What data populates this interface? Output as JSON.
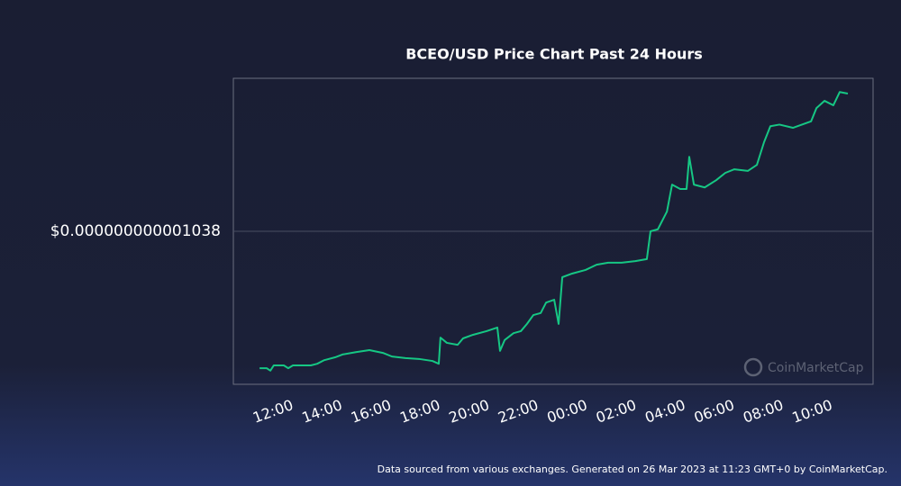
{
  "chart_data": {
    "type": "line",
    "title": "BCEO/USD Price Chart Past 24 Hours",
    "source": "Data sourced from various exchanges. Generated on 26 Mar 2023 at 11:23 GMT+0 by CoinMarketCap.",
    "watermark": "CoinMarketCap",
    "color": "#16c784",
    "grid": true,
    "x": [
      -0.62,
      -0.33,
      -0.18,
      -0.04,
      0.37,
      0.55,
      0.74,
      1.47,
      1.73,
      2.02,
      2.46,
      2.76,
      3.31,
      3.86,
      4.41,
      4.78,
      5.33,
      5.88,
      6.43,
      6.69,
      6.76,
      7.02,
      7.46,
      7.68,
      8.09,
      8.64,
      9.08,
      9.19,
      9.38,
      9.74,
      10.04,
      10.29,
      10.55,
      10.85,
      11.07,
      11.4,
      11.58,
      11.73,
      12.13,
      12.68,
      13.13,
      13.6,
      14.15,
      14.71,
      15.18,
      15.33,
      15.63,
      16.0,
      16.21,
      16.54,
      16.8,
      16.91,
      17.1,
      17.54,
      18.01,
      18.38,
      18.75,
      19.3,
      19.67,
      19.96,
      20.22,
      20.59,
      21.14,
      21.51,
      21.88,
      22.1,
      22.43,
      22.79,
      23.05,
      23.38
    ],
    "values": [
      1.004e-12,
      1.004e-12,
      1.0034e-12,
      1.0047e-12,
      1.0047e-12,
      1.004e-12,
      1.0047e-12,
      1.0047e-12,
      1.0051e-12,
      1.006e-12,
      1.0067e-12,
      1.0074e-12,
      1.008e-12,
      1.0085e-12,
      1.0078e-12,
      1.0069e-12,
      1.0065e-12,
      1.0063e-12,
      1.0058e-12,
      1.0051e-12,
      1.0116e-12,
      1.0103e-12,
      1.0098e-12,
      1.0114e-12,
      1.0123e-12,
      1.0132e-12,
      1.0141e-12,
      1.0083e-12,
      1.011e-12,
      1.0127e-12,
      1.0132e-12,
      1.015e-12,
      1.0172e-12,
      1.0177e-12,
      1.0203e-12,
      1.021e-12,
      1.015e-12,
      1.0266e-12,
      1.0275e-12,
      1.0284e-12,
      1.0297e-12,
      1.0302e-12,
      1.0302e-12,
      1.0306e-12,
      1.0311e-12,
      1.038e-12,
      1.0385e-12,
      1.0429e-12,
      1.0496e-12,
      1.0485e-12,
      1.0485e-12,
      1.0565e-12,
      1.0496e-12,
      1.0489e-12,
      1.0507e-12,
      1.0525e-12,
      1.0534e-12,
      1.053e-12,
      1.0545e-12,
      1.0601e-12,
      1.0641e-12,
      1.0645e-12,
      1.0637e-12,
      1.0645e-12,
      1.0653e-12,
      1.0686e-12,
      1.0704e-12,
      1.0693e-12,
      1.0726e-12,
      1.0722e-12
    ],
    "xlim": [
      -1.69,
      24.41
    ],
    "xticks": [
      {
        "value": 0,
        "label": "12:00"
      },
      {
        "value": 2,
        "label": "14:00"
      },
      {
        "value": 4,
        "label": "16:00"
      },
      {
        "value": 6,
        "label": "18:00"
      },
      {
        "value": 8,
        "label": "20:00"
      },
      {
        "value": 10,
        "label": "22:00"
      },
      {
        "value": 12,
        "label": "00:00"
      },
      {
        "value": 14,
        "label": "02:00"
      },
      {
        "value": 16,
        "label": "04:00"
      },
      {
        "value": 18,
        "label": "06:00"
      },
      {
        "value": 20,
        "label": "08:00"
      },
      {
        "value": 22,
        "label": "10:00"
      }
    ],
    "ylim": [
      1e-12,
      1.076e-12
    ],
    "yticks": [
      {
        "value": 1.038e-12,
        "label": "$0.000000000001038"
      }
    ]
  }
}
